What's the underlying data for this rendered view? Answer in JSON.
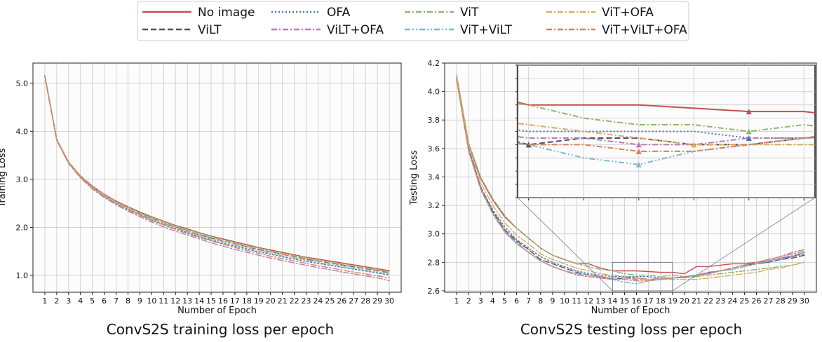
{
  "colors": {
    "No image": "#c44e52",
    "ViLT": "#4a5263",
    "OFA": "#4c72b0",
    "ViLT+OFA": "#b67fab",
    "ViT": "#8fb672",
    "ViT+ViLT": "#7fb8cf",
    "ViT+OFA": "#e0a860",
    "ViT+ViLT+OFA": "#d8805a"
  },
  "legend": {
    "placement": "top-center",
    "entries": [
      {
        "name": "No image",
        "style": "solid"
      },
      {
        "name": "ViLT",
        "style": "dashed"
      },
      {
        "name": "OFA",
        "style": "dotted"
      },
      {
        "name": "ViLT+OFA",
        "style": "dashdot"
      },
      {
        "name": "ViT",
        "style": "dashdot"
      },
      {
        "name": "ViT+ViLT",
        "style": "dashdotdot"
      },
      {
        "name": "ViT+OFA",
        "style": "dashdot"
      },
      {
        "name": "ViT+ViLT+OFA",
        "style": "dashdot"
      }
    ]
  },
  "chart_data": [
    {
      "type": "line",
      "caption": "ConvS2S training loss per epoch",
      "xlabel": "Number of Epoch",
      "ylabel": "Training Loss",
      "xlim": [
        0,
        31
      ],
      "ylim": [
        0.65,
        5.42
      ],
      "grid": true,
      "xticks": [
        1,
        2,
        3,
        4,
        5,
        6,
        7,
        8,
        9,
        10,
        11,
        12,
        13,
        14,
        15,
        16,
        17,
        18,
        19,
        20,
        21,
        22,
        23,
        24,
        25,
        26,
        27,
        28,
        29,
        30
      ],
      "yticks": [
        "1.0",
        "2.0",
        "3.0",
        "4.0",
        "5.0"
      ],
      "x": [
        1,
        2,
        3,
        4,
        5,
        6,
        7,
        8,
        9,
        10,
        11,
        12,
        13,
        14,
        15,
        16,
        17,
        18,
        19,
        20,
        21,
        22,
        23,
        24,
        25,
        26,
        27,
        28,
        29,
        30
      ],
      "series": [
        {
          "name": "No image",
          "values": [
            5.16,
            3.83,
            3.36,
            3.07,
            2.86,
            2.69,
            2.55,
            2.43,
            2.32,
            2.22,
            2.13,
            2.04,
            1.97,
            1.89,
            1.82,
            1.76,
            1.7,
            1.64,
            1.58,
            1.53,
            1.48,
            1.43,
            1.38,
            1.34,
            1.3,
            1.26,
            1.22,
            1.18,
            1.14,
            1.1
          ]
        },
        {
          "name": "ViLT",
          "values": [
            5.15,
            3.82,
            3.35,
            3.06,
            2.84,
            2.67,
            2.53,
            2.4,
            2.29,
            2.19,
            2.1,
            2.01,
            1.93,
            1.85,
            1.78,
            1.72,
            1.66,
            1.6,
            1.54,
            1.49,
            1.44,
            1.39,
            1.34,
            1.3,
            1.26,
            1.22,
            1.18,
            1.14,
            1.1,
            1.06
          ]
        },
        {
          "name": "OFA",
          "values": [
            5.15,
            3.82,
            3.34,
            3.04,
            2.82,
            2.65,
            2.5,
            2.37,
            2.26,
            2.15,
            2.06,
            1.97,
            1.89,
            1.81,
            1.74,
            1.67,
            1.61,
            1.55,
            1.49,
            1.44,
            1.39,
            1.34,
            1.29,
            1.25,
            1.21,
            1.17,
            1.13,
            1.09,
            1.05,
            1.01
          ]
        },
        {
          "name": "ViLT+OFA",
          "values": [
            5.14,
            3.81,
            3.33,
            3.03,
            2.8,
            2.62,
            2.47,
            2.34,
            2.22,
            2.11,
            2.01,
            1.92,
            1.84,
            1.76,
            1.68,
            1.61,
            1.54,
            1.48,
            1.42,
            1.36,
            1.31,
            1.26,
            1.21,
            1.16,
            1.12,
            1.07,
            1.03,
            0.99,
            0.95,
            0.89
          ]
        },
        {
          "name": "ViT",
          "values": [
            5.16,
            3.83,
            3.36,
            3.06,
            2.85,
            2.68,
            2.54,
            2.41,
            2.3,
            2.21,
            2.12,
            2.03,
            1.95,
            1.88,
            1.81,
            1.74,
            1.68,
            1.62,
            1.57,
            1.51,
            1.46,
            1.41,
            1.37,
            1.32,
            1.28,
            1.24,
            1.2,
            1.16,
            1.12,
            1.08
          ]
        },
        {
          "name": "ViT+ViLT",
          "values": [
            5.15,
            3.82,
            3.35,
            3.05,
            2.83,
            2.66,
            2.52,
            2.39,
            2.27,
            2.17,
            2.08,
            1.99,
            1.91,
            1.83,
            1.76,
            1.7,
            1.63,
            1.57,
            1.52,
            1.46,
            1.41,
            1.36,
            1.32,
            1.27,
            1.23,
            1.19,
            1.15,
            1.11,
            1.07,
            1.03
          ]
        },
        {
          "name": "ViT+OFA",
          "values": [
            5.16,
            3.83,
            3.35,
            3.06,
            2.84,
            2.67,
            2.53,
            2.4,
            2.29,
            2.19,
            2.1,
            2.01,
            1.93,
            1.86,
            1.79,
            1.72,
            1.66,
            1.6,
            1.55,
            1.49,
            1.44,
            1.4,
            1.35,
            1.31,
            1.27,
            1.23,
            1.19,
            1.15,
            1.11,
            1.07
          ]
        },
        {
          "name": "ViT+ViLT+OFA",
          "values": [
            5.15,
            3.82,
            3.34,
            3.04,
            2.82,
            2.64,
            2.49,
            2.36,
            2.25,
            2.14,
            2.05,
            1.96,
            1.87,
            1.79,
            1.72,
            1.65,
            1.58,
            1.52,
            1.46,
            1.4,
            1.35,
            1.3,
            1.25,
            1.2,
            1.16,
            1.11,
            1.07,
            1.03,
            0.99,
            0.95
          ]
        }
      ]
    },
    {
      "type": "line",
      "caption": "ConvS2S testing loss per epoch",
      "xlabel": "Number of Epoch",
      "ylabel": "Testing Loss",
      "xlim": [
        0,
        31
      ],
      "ylim": [
        2.59,
        4.2
      ],
      "grid": true,
      "xticks": [
        1,
        2,
        3,
        4,
        5,
        6,
        7,
        8,
        9,
        10,
        11,
        12,
        13,
        14,
        15,
        16,
        17,
        18,
        19,
        20,
        21,
        22,
        23,
        24,
        25,
        26,
        27,
        28,
        29,
        30
      ],
      "yticks": [
        "2.6",
        "2.8",
        "3.0",
        "3.2",
        "3.4",
        "3.6",
        "3.8",
        "4.0",
        "4.2"
      ],
      "x": [
        1,
        2,
        3,
        4,
        5,
        6,
        7,
        8,
        9,
        10,
        11,
        12,
        13,
        14,
        15,
        16,
        17,
        18,
        19,
        20,
        21,
        22,
        23,
        24,
        25,
        26,
        27,
        28,
        29,
        30
      ],
      "series": [
        {
          "name": "No image",
          "values": [
            4.11,
            3.63,
            3.39,
            3.24,
            3.12,
            3.04,
            2.97,
            2.9,
            2.85,
            2.82,
            2.79,
            2.79,
            2.76,
            2.74,
            2.74,
            2.74,
            2.735,
            2.73,
            2.73,
            2.72,
            2.77,
            2.77,
            2.78,
            2.79,
            2.79,
            2.8,
            2.81,
            2.83,
            2.84,
            2.87
          ]
        },
        {
          "name": "ViLT",
          "values": [
            4.09,
            3.6,
            3.33,
            3.16,
            3.03,
            2.95,
            2.89,
            2.82,
            2.79,
            2.76,
            2.73,
            2.71,
            2.7,
            2.68,
            2.69,
            2.69,
            2.68,
            2.68,
            2.69,
            2.695,
            2.7,
            2.73,
            2.74,
            2.76,
            2.78,
            2.79,
            2.8,
            2.82,
            2.83,
            2.85
          ]
        },
        {
          "name": "OFA",
          "values": [
            4.1,
            3.6,
            3.33,
            3.17,
            3.05,
            2.96,
            2.9,
            2.84,
            2.8,
            2.77,
            2.74,
            2.72,
            2.71,
            2.7,
            2.7,
            2.7,
            2.7,
            2.69,
            2.69,
            2.695,
            2.71,
            2.72,
            2.74,
            2.75,
            2.77,
            2.79,
            2.8,
            2.82,
            2.84,
            2.86
          ]
        },
        {
          "name": "ViLT+OFA",
          "values": [
            4.09,
            3.59,
            3.32,
            3.15,
            3.02,
            2.93,
            2.87,
            2.81,
            2.77,
            2.74,
            2.72,
            2.71,
            2.7,
            2.69,
            2.69,
            2.68,
            2.68,
            2.69,
            2.69,
            2.7,
            2.71,
            2.73,
            2.74,
            2.76,
            2.78,
            2.8,
            2.82,
            2.84,
            2.86,
            2.88
          ]
        },
        {
          "name": "ViT",
          "values": [
            4.12,
            3.64,
            3.4,
            3.25,
            3.13,
            3.04,
            2.97,
            2.9,
            2.85,
            2.82,
            2.79,
            2.77,
            2.75,
            2.74,
            2.72,
            2.71,
            2.71,
            2.7,
            2.71,
            2.7,
            2.7,
            2.71,
            2.72,
            2.73,
            2.74,
            2.75,
            2.76,
            2.77,
            2.78,
            2.8
          ]
        },
        {
          "name": "ViT+ViLT",
          "values": [
            4.08,
            3.58,
            3.31,
            3.14,
            3.01,
            2.93,
            2.87,
            2.81,
            2.77,
            2.74,
            2.72,
            2.71,
            2.69,
            2.68,
            2.66,
            2.65,
            2.67,
            2.68,
            2.69,
            2.7,
            2.71,
            2.72,
            2.74,
            2.75,
            2.77,
            2.79,
            2.81,
            2.83,
            2.85,
            2.87
          ]
        },
        {
          "name": "ViT+OFA",
          "values": [
            4.11,
            3.62,
            3.36,
            3.2,
            3.08,
            2.99,
            2.93,
            2.86,
            2.82,
            2.79,
            2.76,
            2.74,
            2.72,
            2.71,
            2.7,
            2.69,
            2.68,
            2.68,
            2.68,
            2.68,
            2.68,
            2.69,
            2.7,
            2.71,
            2.72,
            2.73,
            2.75,
            2.76,
            2.78,
            2.8
          ]
        },
        {
          "name": "ViT+ViLT+OFA",
          "values": [
            4.08,
            3.58,
            3.32,
            3.15,
            3.02,
            2.94,
            2.87,
            2.81,
            2.77,
            2.74,
            2.71,
            2.7,
            2.69,
            2.68,
            2.68,
            2.67,
            2.67,
            2.68,
            2.69,
            2.7,
            2.71,
            2.72,
            2.74,
            2.76,
            2.78,
            2.8,
            2.82,
            2.84,
            2.87,
            2.89
          ]
        }
      ],
      "zoom_inset": {
        "xrange": [
          14,
          19
        ],
        "yrange": [
          2.6,
          2.8
        ],
        "ytick_labels": []
      }
    }
  ]
}
